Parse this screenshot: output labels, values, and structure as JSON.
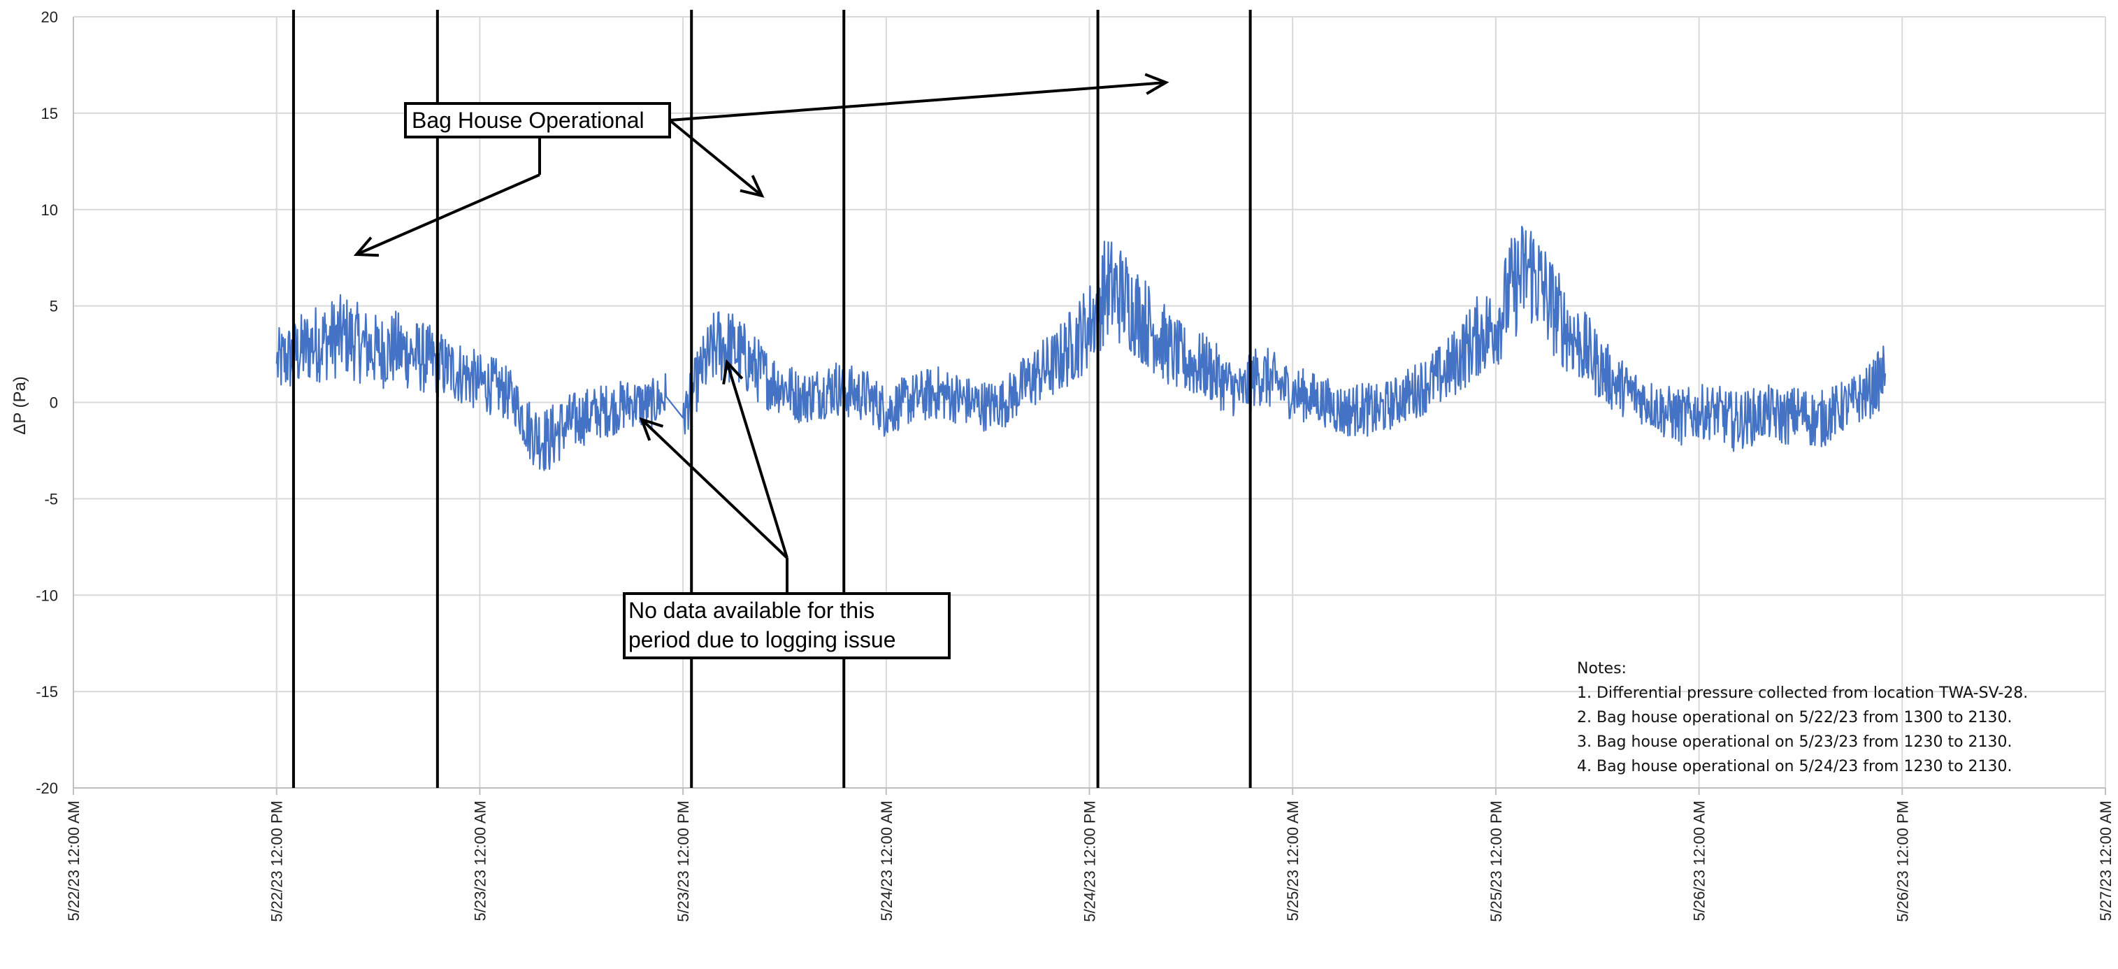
{
  "chart_data": {
    "type": "line",
    "title": "",
    "xlabel": "",
    "ylabel": "ΔP (Pa)",
    "ylim": [
      -20,
      20
    ],
    "yticks": [
      20,
      15,
      10,
      5,
      0,
      -5,
      -10,
      -15,
      -20
    ],
    "xlim": [
      "5/22/23 12:00 AM",
      "5/27/23 12:00 AM"
    ],
    "xticks": [
      "5/22/23 12:00 AM",
      "5/22/23 12:00 PM",
      "5/23/23 12:00 AM",
      "5/23/23 12:00 PM",
      "5/24/23 12:00 AM",
      "5/24/23 12:00 PM",
      "5/25/23 12:00 AM",
      "5/25/23 12:00 PM",
      "5/26/23 12:00 AM",
      "5/26/23 12:00 PM",
      "5/27/23 12:00 AM"
    ],
    "grid": true,
    "series": [
      {
        "color": "#4472c4",
        "x": [
          "5/22/23 12:00 PM",
          "5/22/23 1:00 PM",
          "5/22/23 2:00 PM",
          "5/22/23 3:00 PM",
          "5/22/23 4:00 PM",
          "5/22/23 5:00 PM",
          "5/22/23 6:00 PM",
          "5/22/23 7:00 PM",
          "5/22/23 8:00 PM",
          "5/22/23 9:00 PM",
          "5/22/23 10:00 PM",
          "5/22/23 11:00 PM",
          "5/23/23 12:00 AM",
          "5/23/23 1:00 AM",
          "5/23/23 2:00 AM",
          "5/23/23 3:00 AM",
          "5/23/23 4:00 AM",
          "5/23/23 5:00 AM",
          "5/23/23 6:00 AM",
          "5/23/23 7:00 AM",
          "5/23/23 8:00 AM",
          "5/23/23 9:00 AM",
          "5/23/23 10:00 AM",
          "5/23/23 11:00 AM",
          "5/23/23 12:00 PM",
          "5/23/23 1:00 PM",
          "5/23/23 2:00 PM",
          "5/23/23 3:00 PM",
          "5/23/23 4:00 PM",
          "5/23/23 5:00 PM",
          "5/23/23 6:00 PM",
          "5/23/23 7:00 PM",
          "5/23/23 8:00 PM",
          "5/23/23 9:00 PM",
          "5/23/23 10:00 PM",
          "5/23/23 11:00 PM",
          "5/24/23 12:00 AM",
          "5/24/23 1:00 AM",
          "5/24/23 2:00 AM",
          "5/24/23 3:00 AM",
          "5/24/23 4:00 AM",
          "5/24/23 5:00 AM",
          "5/24/23 6:00 AM",
          "5/24/23 7:00 AM",
          "5/24/23 8:00 AM",
          "5/24/23 9:00 AM",
          "5/24/23 10:00 AM",
          "5/24/23 11:00 AM",
          "5/24/23 12:00 PM",
          "5/24/23 1:00 PM",
          "5/24/23 2:00 PM",
          "5/24/23 3:00 PM",
          "5/24/23 4:00 PM",
          "5/24/23 5:00 PM",
          "5/24/23 6:00 PM",
          "5/24/23 7:00 PM",
          "5/24/23 8:00 PM",
          "5/24/23 9:00 PM",
          "5/24/23 10:00 PM",
          "5/24/23 11:00 PM",
          "5/25/23 12:00 AM",
          "5/25/23 1:00 AM",
          "5/25/23 2:00 AM",
          "5/25/23 3:00 AM",
          "5/25/23 4:00 AM",
          "5/25/23 5:00 AM",
          "5/25/23 6:00 AM",
          "5/25/23 7:00 AM",
          "5/25/23 8:00 AM",
          "5/25/23 9:00 AM",
          "5/25/23 10:00 AM",
          "5/25/23 11:00 AM",
          "5/25/23 12:00 PM",
          "5/25/23 1:00 PM",
          "5/25/23 2:00 PM",
          "5/25/23 3:00 PM",
          "5/25/23 4:00 PM",
          "5/25/23 5:00 PM",
          "5/25/23 6:00 PM",
          "5/25/23 7:00 PM",
          "5/25/23 8:00 PM",
          "5/25/23 9:00 PM",
          "5/25/23 10:00 PM",
          "5/25/23 11:00 PM",
          "5/26/23 12:00 AM",
          "5/26/23 1:00 AM",
          "5/26/23 2:00 AM",
          "5/26/23 3:00 AM",
          "5/26/23 4:00 AM",
          "5/26/23 5:00 AM",
          "5/26/23 6:00 AM",
          "5/26/23 7:00 AM",
          "5/26/23 8:00 AM",
          "5/26/23 9:00 AM",
          "5/26/23 10:00 AM",
          "5/26/23 11:00 AM"
        ],
        "y": [
          2.0,
          2.4,
          3.0,
          3.2,
          3.5,
          3.0,
          2.6,
          2.8,
          2.5,
          2.2,
          1.8,
          1.5,
          1.0,
          0.8,
          0.2,
          -1.5,
          -2.0,
          -1.2,
          -0.8,
          -0.5,
          -0.3,
          0.0,
          -0.2,
          0.3,
          -0.8,
          1.5,
          3.0,
          2.8,
          2.0,
          1.2,
          0.8,
          0.2,
          0.5,
          0.8,
          0.5,
          0.3,
          -0.5,
          0.0,
          0.3,
          0.5,
          0.3,
          0.0,
          -0.2,
          0.0,
          0.8,
          1.5,
          2.0,
          3.0,
          4.0,
          6.0,
          5.5,
          4.5,
          3.5,
          2.5,
          2.0,
          1.8,
          1.0,
          0.5,
          1.5,
          1.0,
          0.5,
          0.3,
          0.0,
          -0.5,
          -0.3,
          -0.5,
          0.0,
          0.5,
          1.0,
          1.5,
          2.5,
          3.5,
          4.0,
          6.0,
          7.0,
          5.5,
          4.0,
          3.0,
          2.0,
          1.0,
          0.5,
          0.0,
          -0.5,
          -0.8,
          -0.5,
          -0.5,
          -1.0,
          -0.8,
          -0.5,
          -0.8,
          -0.5,
          -1.0,
          -0.5,
          0.0,
          0.5,
          1.5
        ]
      }
    ],
    "annotations": [
      {
        "text": "Bag House Operational"
      },
      {
        "text": "No data available for this period due to logging issue",
        "lines": [
          "No data available for this",
          "period due to logging issue"
        ]
      }
    ],
    "notes": [
      "Notes:",
      "1. Differential pressure collected from location TWA-SV-28.",
      "2. Bag house operational on 5/22/23 from 1300 to 2130.",
      "3. Bag house operational on 5/23/23 from 1230 to 2130.",
      "4. Bag house operational on 5/24/23 from 1230 to 2130."
    ],
    "bag_house_periods": [
      {
        "start": "5/22/23 1:00 PM",
        "end": "5/22/23 9:30 PM"
      },
      {
        "start": "5/23/23 12:30 PM",
        "end": "5/23/23 9:30 PM"
      },
      {
        "start": "5/24/23 12:30 PM",
        "end": "5/24/23 9:30 PM"
      }
    ],
    "data_gap": {
      "start": "5/23/23 11:00 AM",
      "end": "5/23/23 1:00 PM"
    }
  }
}
